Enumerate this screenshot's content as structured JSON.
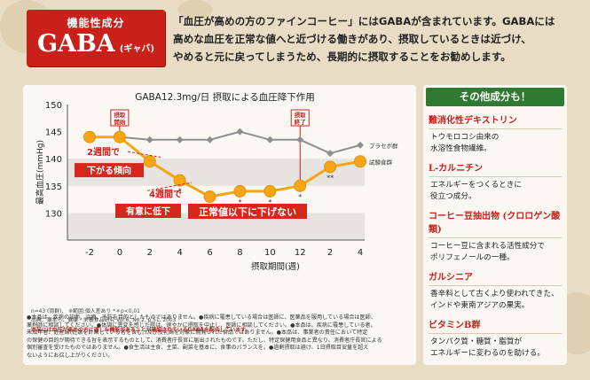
{
  "badge": {
    "title": "機能性成分",
    "main": "GABA",
    "sub": "(ギャバ)"
  },
  "intro": {
    "lines": [
      "「血圧が高めの方のファインコーヒー」にはGABAが含まれています。GABAには",
      "高めな血圧を正常な値へと近づける働きがあり、摂取しているときは近づけ、",
      "やめると元に戻ってしまうため、長期的に摂取することをお勧めします。"
    ]
  },
  "chart_data": {
    "type": "line",
    "title": "GABA12.3mg/日 摂取による血圧降下作用",
    "xlabel": "摂取期間(週)",
    "ylabel": "最高血圧(mmHg)",
    "x": [
      -2,
      0,
      2,
      4,
      6,
      8,
      10,
      12,
      2,
      4
    ],
    "x_ticks": [
      "-2",
      "0",
      "2",
      "4",
      "6",
      "8",
      "10",
      "12",
      "2",
      "4"
    ],
    "y_ticks": [
      "150",
      "145",
      "140",
      "135",
      "130"
    ],
    "ylim": [
      125,
      150
    ],
    "series": [
      {
        "name": "プラセボ群",
        "color": "#8f8f8f",
        "values": [
          144,
          144,
          143.5,
          143.5,
          143.5,
          145,
          143.5,
          143.5,
          141,
          142.5
        ]
      },
      {
        "name": "試験食群",
        "color": "#f5a516",
        "values": [
          144,
          144,
          139.5,
          136,
          133,
          134,
          134,
          135,
          138.5,
          139.5
        ]
      }
    ],
    "significance_marks": [
      "*",
      "*",
      "*",
      "*",
      "*",
      "**"
    ],
    "start_label": "摂取開始",
    "stop_label": "摂取終了",
    "annotations": [
      {
        "label": "2週間で",
        "sub": "下がる傾向"
      },
      {
        "label": "4週間で",
        "sub": "有意に低下"
      },
      {
        "label": "正常値以下に下げない"
      }
    ],
    "bands": [
      [
        135,
        140
      ],
      [
        125,
        130
      ]
    ],
    "grid": false,
    "legend": "inline"
  },
  "chart_notes": {
    "ref1": "n=43 (両群)、 ※範囲:個人差あり   *＊p<0.01",
    "ref2": "出典：瀬本ら、健康・栄養食品研究 Vol.6, No.2, p.51, 2003",
    "red": "本品には血圧が高めの方に適した機能があることが確認されているGABAを配合しています。"
  },
  "side": {
    "header": "その他成分も！",
    "items": [
      {
        "name": "難消化性デキストリン",
        "desc": [
          "トウモロコシ由来の",
          "水溶性食物繊維。"
        ]
      },
      {
        "name": "L-カルニチン",
        "desc": [
          "エネルギーをつくるときに",
          "役立つ成分。"
        ]
      },
      {
        "name": "コーヒー豆抽出物 (クロロゲン酸類)",
        "desc": [
          "コーヒー豆に含まれる活性成分で",
          "ポリフェノールの一種。"
        ]
      },
      {
        "name": "ガルシニア",
        "desc": [
          "香辛料として古くより使われてきた、",
          "インドや東南アジアの果実。"
        ]
      },
      {
        "name": "ビタミンB群",
        "desc": [
          "タンパク質・糖質・脂質が",
          "エネルギーに変わるのを助ける。"
        ]
      }
    ]
  },
  "footnote": {
    "lines": [
      "●本品は、疾病の診断、治療、予防を目的としたものではありません。●疾病に罹患している場合は医師に、医薬品を服用している場合は医師、",
      "薬剤師に相談してください。●体調に異変を感じた際は、速やかに摂取を中止し、医師に相談してください。●本品は、疾病に罹患している者、",
      "未成年者、妊産婦(妊娠を計画している者を含む。)及び授乳婦を対象に開発された食品ではありません。●本品は、事業者の責任において特定",
      "の保健の目的が期待できる旨を表示するものとして、消費者庁長官に届出されたものです。ただし、特定保健用食品と異なり、消費者庁長官による",
      "個別審査を受けたものではありません。●食生活は主食、主菜、副菜を基本に、食事のバランスを。●過剰摂取は避け、1日摂取目安量を超え",
      "ないようにお召し上がりください。"
    ]
  }
}
